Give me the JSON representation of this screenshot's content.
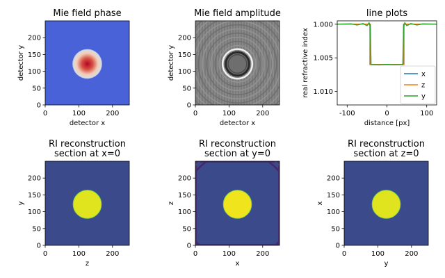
{
  "chart_data": [
    {
      "type": "heatmap",
      "title": "Mie field phase",
      "xlabel": "detector x",
      "ylabel": "detector y",
      "xticks": [
        0,
        100,
        200
      ],
      "yticks": [
        0,
        50,
        100,
        150,
        200
      ],
      "xlim": [
        0,
        250
      ],
      "ylim": [
        250,
        0
      ],
      "image": {
        "kind": "phase",
        "background": "#4a62d8",
        "center": [
          125,
          122
        ],
        "radius": 42,
        "peak_color": "#b40426"
      }
    },
    {
      "type": "heatmap",
      "title": "Mie field amplitude",
      "xlabel": "detector x",
      "ylabel": "detector y",
      "xticks": [
        0,
        100,
        200
      ],
      "yticks": [
        0,
        50,
        100,
        150,
        200
      ],
      "xlim": [
        0,
        250
      ],
      "ylim": [
        250,
        0
      ],
      "image": {
        "kind": "amplitude",
        "background": "#7f7f7f",
        "center": [
          125,
          122
        ],
        "radius": 42
      }
    },
    {
      "type": "line",
      "title": "line plots",
      "xlabel": "distance [px]",
      "ylabel": "real refractive index",
      "xticks": [
        -100,
        0,
        100
      ],
      "yticks": [
        1.0,
        1.005,
        1.01
      ],
      "ytick_labels": [
        "1.000",
        "1.005",
        "1.010"
      ],
      "xlim": [
        -125,
        125
      ],
      "ylim": [
        0.9995,
        1.012
      ],
      "legend": "right",
      "series": [
        {
          "name": "x",
          "color": "#1f77b4",
          "x": [
            -125,
            -42,
            -42,
            42,
            42,
            125
          ],
          "y": [
            1.0,
            1.0,
            1.006,
            1.006,
            1.0,
            1.0
          ]
        },
        {
          "name": "z",
          "color": "#ff7f0e",
          "x": [
            -125,
            -43,
            -43,
            43,
            43,
            125
          ],
          "y": [
            1.0,
            1.0,
            1.006,
            1.006,
            1.0,
            1.0
          ]
        },
        {
          "name": "y",
          "color": "#2ca02c",
          "x": [
            -125,
            -90,
            -75,
            -60,
            -50,
            -45,
            -42,
            -40,
            -20,
            0,
            20,
            40,
            42,
            45,
            50,
            60,
            75,
            90,
            125
          ],
          "y": [
            1.0,
            0.99995,
            1.0001,
            0.9999,
            1.0002,
            0.9998,
            1.0003,
            1.006,
            1.00605,
            1.00598,
            1.00603,
            1.006,
            1.0003,
            0.9998,
            1.0002,
            0.9999,
            1.0001,
            0.99995,
            1.0
          ]
        }
      ]
    },
    {
      "type": "heatmap",
      "title": "RI reconstruction\nsection at x=0",
      "xlabel": "z",
      "ylabel": "y",
      "xticks": [
        0,
        100,
        200
      ],
      "yticks": [
        0,
        50,
        100,
        150,
        200
      ],
      "xlim": [
        0,
        250
      ],
      "ylim": [
        250,
        0
      ],
      "image": {
        "kind": "section",
        "background": "#3b4a8a",
        "center": [
          125,
          122
        ],
        "radius": 42,
        "disc_color": "#e0e41e"
      }
    },
    {
      "type": "heatmap",
      "title": "RI reconstruction\nsection at y=0",
      "xlabel": "x",
      "ylabel": "z",
      "xticks": [
        0,
        100,
        200
      ],
      "yticks": [
        0,
        50,
        100,
        150,
        200
      ],
      "xlim": [
        0,
        250
      ],
      "ylim": [
        250,
        0
      ],
      "image": {
        "kind": "section_rings",
        "background": "#3b4a8a",
        "center": [
          125,
          122
        ],
        "radius": 42,
        "disc_color": "#f0e51c"
      }
    },
    {
      "type": "heatmap",
      "title": "RI reconstruction\nsection at z=0",
      "xlabel": "y",
      "ylabel": "x",
      "xticks": [
        0,
        100,
        200
      ],
      "yticks": [
        0,
        50,
        100,
        150,
        200
      ],
      "xlim": [
        0,
        250
      ],
      "ylim": [
        250,
        0
      ],
      "image": {
        "kind": "section",
        "background": "#3b4a8a",
        "center": [
          125,
          122
        ],
        "radius": 42,
        "disc_color": "#e0e41e"
      }
    }
  ]
}
